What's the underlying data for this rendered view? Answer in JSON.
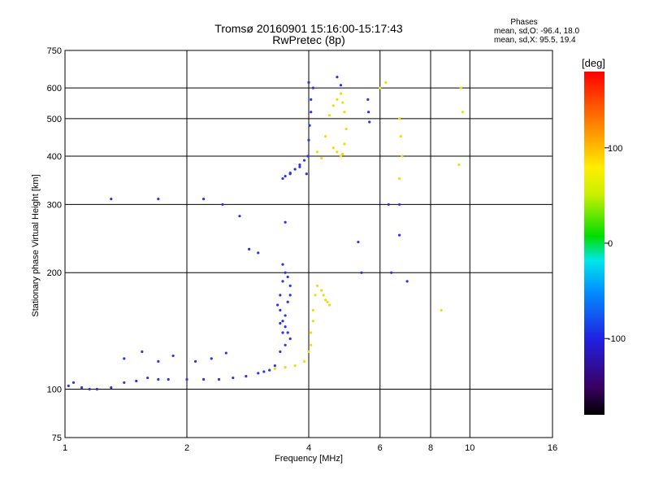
{
  "header": {
    "title_line1": "Tromsø 20160901 15:16:00-15:17:43",
    "title_line2": "RwPretec (8p)",
    "stats_title": "Phases",
    "stats_o": "mean, sd,O: -96.4, 18.0",
    "stats_x": "mean, sd,X:  95.5, 19.4"
  },
  "colorbar": {
    "unit": "[deg]",
    "ticks": [
      "100",
      "0",
      "-100"
    ],
    "tick_values": [
      100,
      0,
      -100
    ],
    "range": [
      -180,
      180
    ]
  },
  "colors": {
    "o_trace": "#2a35e6",
    "x_trace": "#eedc10",
    "grid": "#000000"
  },
  "chart_data": {
    "type": "scatter",
    "xscale": "log",
    "yscale": "log",
    "xlim": [
      1,
      16
    ],
    "ylim": [
      75,
      750
    ],
    "xlabel": "Frequency [MHz]",
    "ylabel": "Stationary phase Virtual Height [km]",
    "xticks": [
      "1",
      "2",
      "4",
      "6",
      "8",
      "10",
      "16"
    ],
    "xtick_values": [
      1,
      2,
      4,
      6,
      8,
      10,
      16
    ],
    "yticks": [
      "750",
      "600",
      "500",
      "400",
      "300",
      "200",
      "100",
      "75"
    ],
    "ytick_values": [
      750,
      600,
      500,
      400,
      300,
      200,
      100,
      75
    ],
    "grid": true,
    "series": [
      {
        "x": [
          1.02,
          1.05,
          1.1,
          1.15,
          1.2,
          1.3,
          1.4,
          1.5,
          1.6,
          1.7,
          1.8,
          2.0,
          2.2,
          2.4,
          2.6,
          2.8,
          3.0,
          3.1,
          3.2,
          3.3,
          3.4,
          3.45,
          3.5,
          3.55,
          3.6,
          3.6,
          3.55,
          3.5,
          3.45,
          3.4,
          3.4,
          3.45,
          3.5,
          3.55,
          3.6,
          3.5,
          3.4,
          3.35,
          3.45,
          1.4,
          1.55,
          1.7,
          1.85,
          2.1,
          2.3,
          2.5,
          3.95,
          3.98,
          4.0,
          4.02,
          4.05,
          4.05,
          4.1,
          4.0,
          3.9,
          3.8,
          3.7,
          3.6,
          3.5,
          3.45,
          3.6,
          3.8,
          4.7,
          4.8,
          5.6,
          5.62,
          5.65,
          1.3,
          1.7,
          2.2,
          2.45,
          2.7,
          2.85,
          3.0,
          3.5,
          5.3,
          5.4,
          6.3,
          6.7,
          6.7,
          6.4,
          7.0
        ],
        "y": [
          102,
          104,
          101,
          100,
          100,
          101,
          104,
          105,
          107,
          106,
          106,
          106,
          106,
          106,
          107,
          108,
          110,
          111,
          112,
          115,
          125,
          140,
          155,
          168,
          175,
          185,
          195,
          200,
          190,
          175,
          160,
          150,
          145,
          140,
          135,
          130,
          148,
          165,
          210,
          120,
          125,
          118,
          122,
          118,
          120,
          124,
          360,
          400,
          440,
          480,
          520,
          560,
          600,
          620,
          390,
          380,
          370,
          360,
          355,
          350,
          362,
          375,
          640,
          610,
          560,
          520,
          490,
          310,
          310,
          310,
          300,
          280,
          230,
          225,
          270,
          240,
          200,
          300,
          250,
          300,
          200,
          190
        ]
      },
      {
        "x": [
          3.3,
          3.5,
          3.7,
          3.9,
          4.0,
          4.05,
          4.1,
          4.15,
          4.2,
          4.1,
          4.05,
          4.3,
          4.35,
          4.4,
          4.45,
          4.5,
          4.6,
          4.7,
          4.8,
          4.85,
          4.9,
          4.95,
          4.9,
          4.85,
          4.8,
          4.7,
          4.6,
          4.5,
          4.4,
          4.2,
          4.3,
          6.0,
          6.2,
          6.7,
          6.75,
          6.8,
          6.7,
          9.5,
          9.6,
          9.4,
          8.5
        ],
        "y": [
          113,
          114,
          115,
          118,
          125,
          140,
          160,
          175,
          185,
          150,
          130,
          180,
          175,
          170,
          168,
          165,
          420,
          410,
          400,
          405,
          430,
          470,
          520,
          550,
          580,
          560,
          540,
          510,
          450,
          410,
          395,
          600,
          620,
          500,
          450,
          400,
          350,
          600,
          520,
          380,
          160
        ]
      }
    ]
  }
}
